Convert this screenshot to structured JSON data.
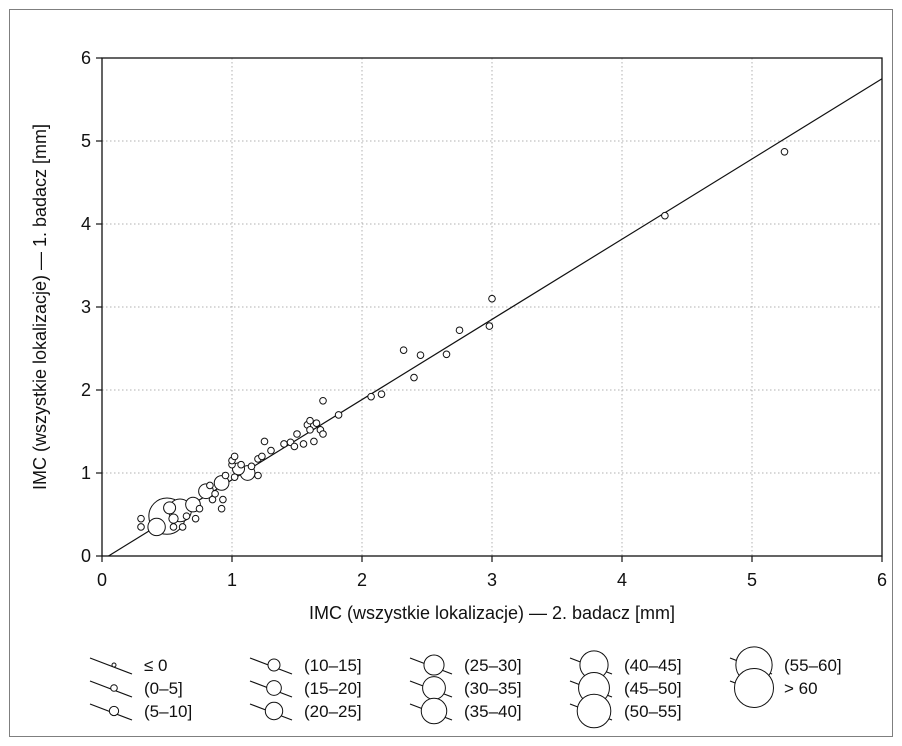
{
  "chart_data": {
    "type": "scatter",
    "title": "",
    "xlabel": "IMC (wszystkie lokalizacje) — 2. badacz [mm]",
    "ylabel": "IMC (wszystkie lokalizacje) — 1. badacz [mm]",
    "xlim": [
      0,
      6
    ],
    "ylim": [
      0,
      6
    ],
    "xticks": [
      "0",
      "1",
      "2",
      "3",
      "4",
      "5",
      "6"
    ],
    "yticks": [
      "0",
      "1",
      "2",
      "3",
      "4",
      "5",
      "6"
    ],
    "grid": true,
    "fit_line": {
      "x": [
        0.05,
        6
      ],
      "y": [
        0,
        5.75
      ]
    },
    "points": [
      {
        "x": 0.3,
        "y": 0.45,
        "c": 1
      },
      {
        "x": 0.3,
        "y": 0.35,
        "c": 1
      },
      {
        "x": 0.42,
        "y": 0.35,
        "c": 5
      },
      {
        "x": 0.5,
        "y": 0.48,
        "c": 12
      },
      {
        "x": 0.52,
        "y": 0.58,
        "c": 3
      },
      {
        "x": 0.55,
        "y": 0.45,
        "c": 2
      },
      {
        "x": 0.55,
        "y": 0.35,
        "c": 1
      },
      {
        "x": 0.6,
        "y": 0.55,
        "c": 7
      },
      {
        "x": 0.62,
        "y": 0.35,
        "c": 1
      },
      {
        "x": 0.65,
        "y": 0.48,
        "c": 1
      },
      {
        "x": 0.7,
        "y": 0.62,
        "c": 4
      },
      {
        "x": 0.72,
        "y": 0.45,
        "c": 1
      },
      {
        "x": 0.75,
        "y": 0.57,
        "c": 1
      },
      {
        "x": 0.8,
        "y": 0.78,
        "c": 4
      },
      {
        "x": 0.83,
        "y": 0.85,
        "c": 1
      },
      {
        "x": 0.85,
        "y": 0.68,
        "c": 1
      },
      {
        "x": 0.87,
        "y": 0.75,
        "c": 1
      },
      {
        "x": 0.92,
        "y": 0.88,
        "c": 4
      },
      {
        "x": 0.92,
        "y": 0.57,
        "c": 1
      },
      {
        "x": 0.93,
        "y": 0.68,
        "c": 1
      },
      {
        "x": 0.95,
        "y": 0.97,
        "c": 1
      },
      {
        "x": 1.0,
        "y": 1.1,
        "c": 1
      },
      {
        "x": 1.0,
        "y": 1.15,
        "c": 1
      },
      {
        "x": 1.02,
        "y": 1.2,
        "c": 1
      },
      {
        "x": 1.02,
        "y": 0.95,
        "c": 1
      },
      {
        "x": 1.05,
        "y": 1.05,
        "c": 3
      },
      {
        "x": 1.07,
        "y": 1.1,
        "c": 1
      },
      {
        "x": 1.12,
        "y": 1.0,
        "c": 4
      },
      {
        "x": 1.15,
        "y": 1.08,
        "c": 1
      },
      {
        "x": 1.2,
        "y": 1.17,
        "c": 1
      },
      {
        "x": 1.2,
        "y": 0.97,
        "c": 1
      },
      {
        "x": 1.23,
        "y": 1.2,
        "c": 1
      },
      {
        "x": 1.25,
        "y": 1.38,
        "c": 1
      },
      {
        "x": 1.3,
        "y": 1.27,
        "c": 1
      },
      {
        "x": 1.4,
        "y": 1.35,
        "c": 1
      },
      {
        "x": 1.45,
        "y": 1.37,
        "c": 1
      },
      {
        "x": 1.48,
        "y": 1.32,
        "c": 1
      },
      {
        "x": 1.5,
        "y": 1.47,
        "c": 1
      },
      {
        "x": 1.55,
        "y": 1.35,
        "c": 1
      },
      {
        "x": 1.58,
        "y": 1.58,
        "c": 1
      },
      {
        "x": 1.6,
        "y": 1.52,
        "c": 1
      },
      {
        "x": 1.6,
        "y": 1.63,
        "c": 1
      },
      {
        "x": 1.63,
        "y": 1.38,
        "c": 1
      },
      {
        "x": 1.65,
        "y": 1.6,
        "c": 1
      },
      {
        "x": 1.68,
        "y": 1.52,
        "c": 1
      },
      {
        "x": 1.7,
        "y": 1.47,
        "c": 1
      },
      {
        "x": 1.7,
        "y": 1.87,
        "c": 1
      },
      {
        "x": 1.82,
        "y": 1.7,
        "c": 1
      },
      {
        "x": 2.07,
        "y": 1.92,
        "c": 1
      },
      {
        "x": 2.15,
        "y": 1.95,
        "c": 1
      },
      {
        "x": 2.32,
        "y": 2.48,
        "c": 1
      },
      {
        "x": 2.4,
        "y": 2.15,
        "c": 1
      },
      {
        "x": 2.45,
        "y": 2.42,
        "c": 1
      },
      {
        "x": 2.65,
        "y": 2.43,
        "c": 1
      },
      {
        "x": 2.75,
        "y": 2.72,
        "c": 1
      },
      {
        "x": 2.98,
        "y": 2.77,
        "c": 1
      },
      {
        "x": 3.0,
        "y": 3.1,
        "c": 1
      },
      {
        "x": 4.33,
        "y": 4.1,
        "c": 1
      },
      {
        "x": 5.25,
        "y": 4.87,
        "c": 1
      }
    ],
    "legend": [
      {
        "label": "≤ 0",
        "c": 0
      },
      {
        "label": "(0–5]",
        "c": 1
      },
      {
        "label": "(5–10]",
        "c": 2
      },
      {
        "label": "(10–15]",
        "c": 3
      },
      {
        "label": "(15–20]",
        "c": 4
      },
      {
        "label": "(20–25]",
        "c": 5
      },
      {
        "label": "(25–30]",
        "c": 6
      },
      {
        "label": "(30–35]",
        "c": 7
      },
      {
        "label": "(35–40]",
        "c": 8
      },
      {
        "label": "(40–45]",
        "c": 9
      },
      {
        "label": "(45–50]",
        "c": 10
      },
      {
        "label": "(50–55]",
        "c": 11
      },
      {
        "label": "(55–60]",
        "c": 12
      },
      {
        "label": "> 60",
        "c": 13
      }
    ]
  }
}
